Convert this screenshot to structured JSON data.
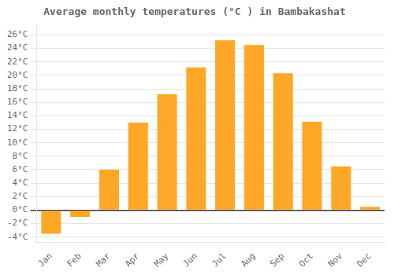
{
  "chart_data": {
    "type": "bar",
    "title": "Average monthly temperatures (°C ) in Bambakashat",
    "categories": [
      "Jan",
      "Feb",
      "Mar",
      "Apr",
      "May",
      "Jun",
      "Jul",
      "Aug",
      "Sep",
      "Oct",
      "Nov",
      "Dec"
    ],
    "values": [
      -3.5,
      -1.0,
      6.0,
      13.0,
      17.2,
      21.2,
      25.2,
      24.5,
      20.3,
      13.1,
      6.5,
      0.5
    ],
    "color": "#FFA726",
    "ylim": [
      -4.8,
      27.5
    ],
    "yticks": [
      {
        "value": -4,
        "label": "-4°C"
      },
      {
        "value": -2,
        "label": "-2°C"
      },
      {
        "value": 0,
        "label": "0°C"
      },
      {
        "value": 2,
        "label": "2°C"
      },
      {
        "value": 4,
        "label": "4°C"
      },
      {
        "value": 6,
        "label": "6°C"
      },
      {
        "value": 8,
        "label": "8°C"
      },
      {
        "value": 10,
        "label": "10°C"
      },
      {
        "value": 12,
        "label": "12°C"
      },
      {
        "value": 14,
        "label": "14°C"
      },
      {
        "value": 16,
        "label": "16°C"
      },
      {
        "value": 18,
        "label": "18°C"
      },
      {
        "value": 20,
        "label": "20°C"
      },
      {
        "value": 22,
        "label": "22°C"
      },
      {
        "value": 24,
        "label": "24°C"
      },
      {
        "value": 26,
        "label": "26°C"
      }
    ],
    "grid": true
  }
}
